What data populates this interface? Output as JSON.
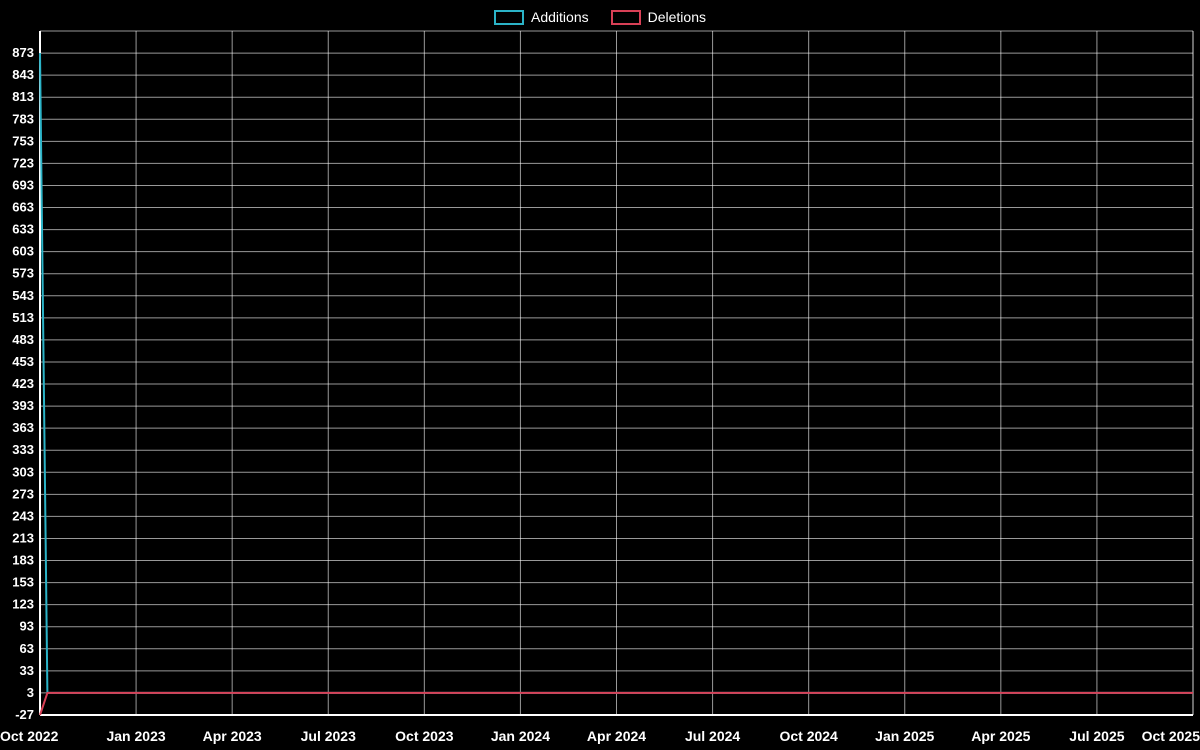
{
  "chart_data": {
    "type": "line",
    "title": "",
    "xlabel": "",
    "ylabel": "",
    "grid": true,
    "background": "#000000",
    "grid_color": "#ffffff",
    "axis_color": "#ffffff",
    "text_color": "#ffffff",
    "legend_position": "top-center",
    "x_ticks": [
      "Oct 2022",
      "Jan 2023",
      "Apr 2023",
      "Jul 2023",
      "Oct 2023",
      "Jan 2024",
      "Apr 2024",
      "Jul 2024",
      "Oct 2024",
      "Jan 2025",
      "Apr 2025",
      "Jul 2025",
      "Oct 2025"
    ],
    "y_ticks": [
      873,
      843,
      813,
      783,
      753,
      723,
      693,
      663,
      633,
      603,
      573,
      543,
      513,
      483,
      453,
      423,
      393,
      363,
      333,
      303,
      273,
      243,
      213,
      183,
      153,
      123,
      93,
      63,
      33,
      3,
      -27
    ],
    "ylim": [
      -27,
      903
    ],
    "x_weeks_total": 156,
    "series": [
      {
        "name": "Additions",
        "color": "#2bb3c7",
        "points": [
          [
            0,
            873
          ],
          [
            1,
            3
          ],
          [
            156,
            3
          ]
        ]
      },
      {
        "name": "Deletions",
        "color": "#d94056",
        "points": [
          [
            0,
            -27
          ],
          [
            1,
            3
          ],
          [
            156,
            3
          ]
        ]
      }
    ]
  }
}
